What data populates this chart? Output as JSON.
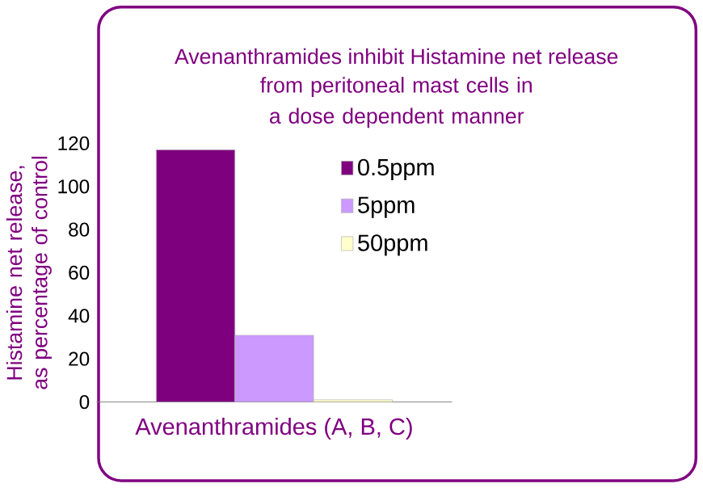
{
  "chart_data": {
    "type": "bar",
    "title": "Avenanthramides inhibit Histamine net release",
    "subtitle": "from peritoneal mast cells in a dose dependent manner",
    "xlabel": "Avenanthramides (A, B, C)",
    "ylabel": "Histamine net release, as percentage of control",
    "categories": [
      null
    ],
    "series": [
      {
        "name": "0.5ppm",
        "color": "#7f007f",
        "values": [
          117
        ]
      },
      {
        "name": "5ppm",
        "color": "#cc99ff",
        "values": [
          31
        ]
      },
      {
        "name": "50ppm",
        "color": "#ffffcc",
        "values": [
          1
        ]
      }
    ],
    "ylim": [
      0,
      120
    ],
    "yticks": [
      0,
      20,
      40,
      60,
      80,
      100,
      120
    ],
    "legend": "top right"
  }
}
